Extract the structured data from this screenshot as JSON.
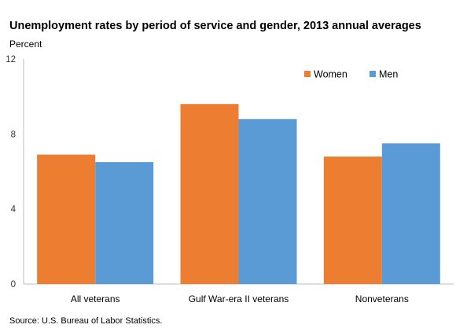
{
  "title": "Unemployment rates by period of service and gender, 2013 annual averages",
  "unit_label": "Percent",
  "source": "Source: U.S. Bureau of Labor Statistics.",
  "chart_data": {
    "type": "bar",
    "categories": [
      "All veterans",
      "Gulf War-era II veterans",
      "Nonveterans"
    ],
    "series": [
      {
        "name": "Women",
        "values": [
          6.9,
          9.6,
          6.8
        ],
        "color": "#ed7d31"
      },
      {
        "name": "Men",
        "values": [
          6.5,
          8.8,
          7.5
        ],
        "color": "#5b9bd5"
      }
    ],
    "ylim": [
      0,
      12
    ],
    "yticks": [
      0,
      4,
      8,
      12
    ],
    "grid": false,
    "legend": "top-right"
  }
}
